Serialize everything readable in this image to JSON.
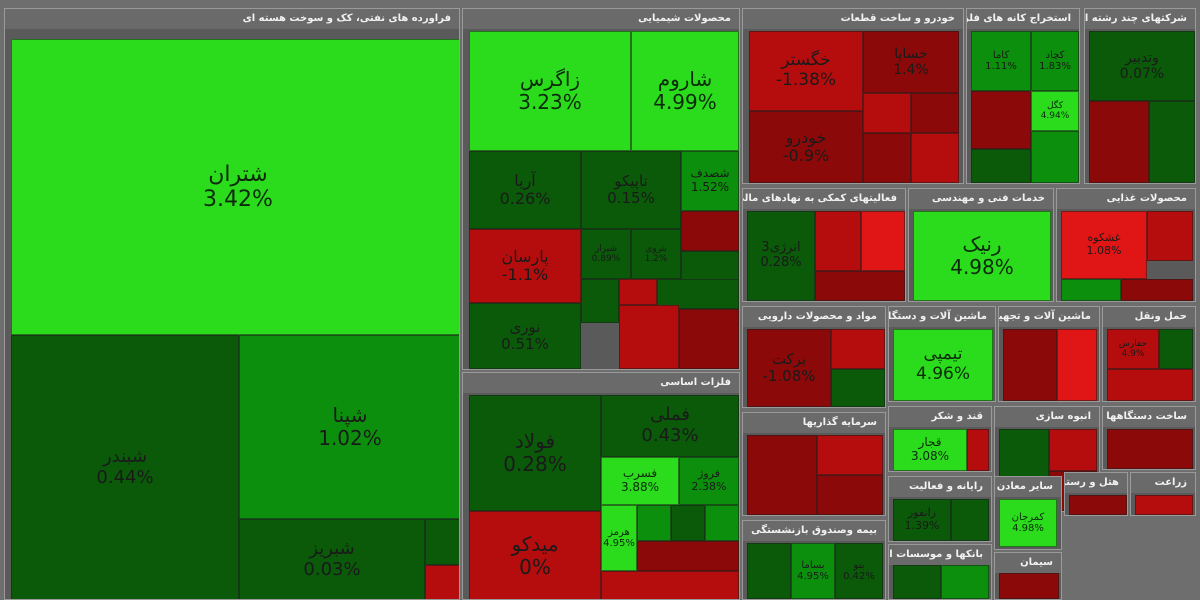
{
  "colors": {
    "strong_green": "#2bdc1c",
    "green": "#0c8f0c",
    "mid_green": "#0a7a0a",
    "dark_green": "#0a5a0a",
    "strong_red": "#e01616",
    "red": "#b50d0d",
    "dark_red": "#8c0909"
  },
  "chart_data": {
    "type": "treemap",
    "sectors": [
      {
        "name": "فراورده های نفتی، کک و سوخت هسته ای",
        "tiles": [
          {
            "symbol": "شتران",
            "change": "3.42%"
          },
          {
            "symbol": "شپنا",
            "change": "1.02%"
          },
          {
            "symbol": "شبندر",
            "change": "0.44%"
          },
          {
            "symbol": "شبریز",
            "change": "0.03%"
          }
        ]
      },
      {
        "name": "محصولات شیمیایی",
        "tiles": [
          {
            "symbol": "زاگرس",
            "change": "3.23%"
          },
          {
            "symbol": "شاروم",
            "change": "4.99%"
          },
          {
            "symbol": "آریا",
            "change": "0.26%"
          },
          {
            "symbol": "تاپیکو",
            "change": "0.15%"
          },
          {
            "symbol": "شصدف",
            "change": "1.52%"
          },
          {
            "symbol": "پارسان",
            "change": "-1.1%"
          },
          {
            "symbol": "نوری",
            "change": "0.51%"
          },
          {
            "symbol": "شیراز",
            "change": "0.89%"
          },
          {
            "symbol": "بتروی",
            "change": "1.2%"
          }
        ]
      },
      {
        "name": "فلزات اساسی",
        "tiles": [
          {
            "symbol": "فولاد",
            "change": "0.28%"
          },
          {
            "symbol": "فملی",
            "change": "0.43%"
          },
          {
            "symbol": "فسرب",
            "change": "3.88%"
          },
          {
            "symbol": "فروژ",
            "change": "2.38%"
          },
          {
            "symbol": "هرمز",
            "change": "4.95%"
          },
          {
            "symbol": "میدکو",
            "change": "0%"
          }
        ]
      },
      {
        "name": "خودرو و ساخت قطعات",
        "tiles": [
          {
            "symbol": "خگستر",
            "change": "-1.38%"
          },
          {
            "symbol": "خساپا",
            "change": "1.4%"
          },
          {
            "symbol": "خودرو",
            "change": "-0.9%"
          }
        ]
      },
      {
        "name": "استخراج کانه های فلزی",
        "tiles": [
          {
            "symbol": "کاما",
            "change": "1.11%"
          },
          {
            "symbol": "کچاد",
            "change": "1.83%"
          },
          {
            "symbol": "کگل",
            "change": "4.94%"
          }
        ]
      },
      {
        "name": "شرکتهای چند رشته ای صنعتی",
        "tiles": [
          {
            "symbol": "وتدبیر",
            "change": "0.07%"
          }
        ]
      },
      {
        "name": "فعالیتهای کمکی به نهادهای مالی",
        "tiles": [
          {
            "symbol": "انرژی3",
            "change": "0.28%"
          }
        ]
      },
      {
        "name": "خدمات فنی و مهندسی",
        "tiles": [
          {
            "symbol": "رنیک",
            "change": "4.98%"
          }
        ]
      },
      {
        "name": "محصولات غذایی",
        "tiles": [
          {
            "symbol": "غشکوه",
            "change": "1.08%"
          }
        ]
      },
      {
        "name": "مواد و محصولات دارویی",
        "tiles": [
          {
            "symbol": "برکت",
            "change": "-1.08%"
          }
        ]
      },
      {
        "name": "ماشین آلات و دستگاههای برقی",
        "tiles": [
          {
            "symbol": "تیمپی",
            "change": "4.96%"
          }
        ]
      },
      {
        "name": "ماشین آلات و تجهیزات",
        "tiles": []
      },
      {
        "name": "حمل ونقل",
        "tiles": [
          {
            "symbol": "حفارس",
            "change": "4.9%"
          }
        ]
      },
      {
        "name": "سرمایه گذاریها",
        "tiles": []
      },
      {
        "name": "قند و شکر",
        "tiles": [
          {
            "symbol": "قجار",
            "change": "3.08%"
          }
        ]
      },
      {
        "name": "انبوه سازی",
        "tiles": []
      },
      {
        "name": "ساخت دستگاهها",
        "tiles": []
      },
      {
        "name": "رایانه و فعالیت",
        "tiles": [
          {
            "symbol": "رانفور",
            "change": "1.39%"
          }
        ]
      },
      {
        "name": "سایر معادن",
        "tiles": [
          {
            "symbol": "کمرجان",
            "change": "4.98%"
          }
        ]
      },
      {
        "name": "هتل و رستوران",
        "tiles": []
      },
      {
        "name": "زراعت",
        "tiles": []
      },
      {
        "name": "بیمه وصندوق بازنشستگی",
        "tiles": [
          {
            "symbol": "بساما",
            "change": "4.95%"
          },
          {
            "symbol": "بنو",
            "change": "0.42%"
          }
        ]
      },
      {
        "name": "بانکها و موسسات اعتباری",
        "tiles": []
      },
      {
        "name": "سیمان",
        "tiles": []
      }
    ]
  }
}
